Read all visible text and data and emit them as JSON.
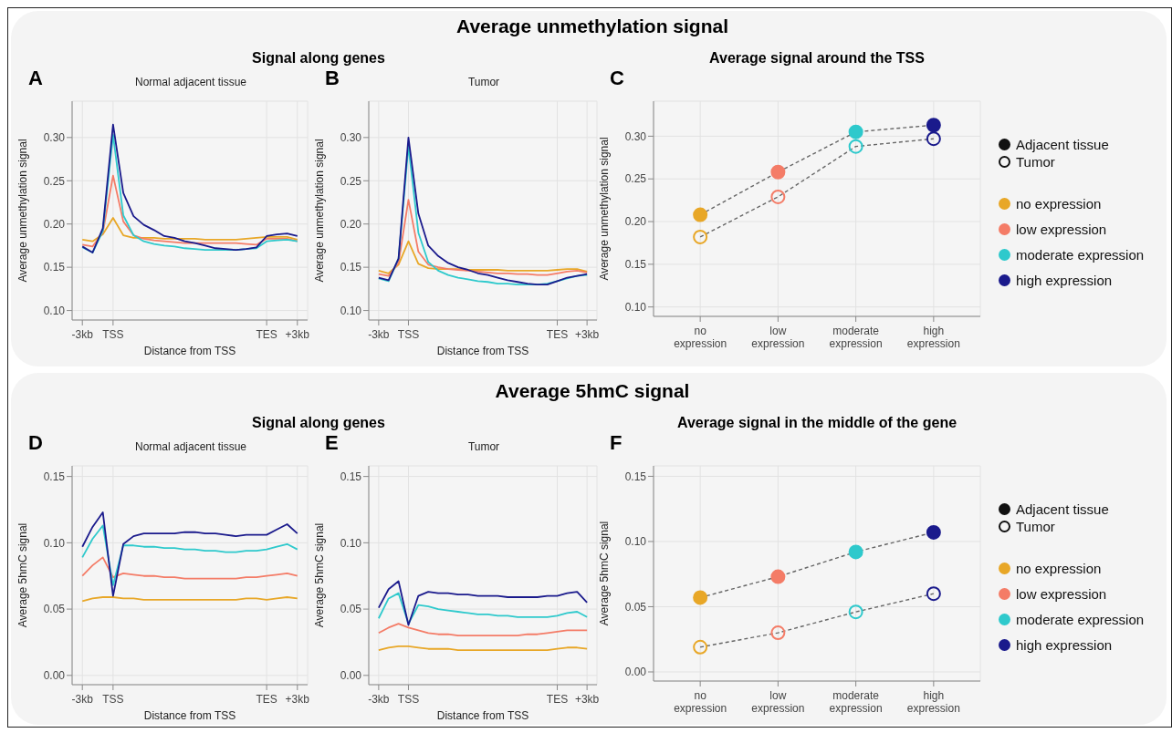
{
  "chart_data": [
    {
      "type": "line",
      "title": "Normal adjacent tissue",
      "xlabel": "Distance from TSS",
      "ylabel": "Average unmethylation signal",
      "annotations": [
        "A",
        "Average unmethylation signal",
        "Signal along genes"
      ],
      "grid": true,
      "ylim": [
        0.089,
        0.342
      ],
      "yticks": [
        {
          "value": 0.1,
          "label": "0.10"
        },
        {
          "value": 0.15,
          "label": "0.15"
        },
        {
          "value": 0.2,
          "label": "0.20"
        },
        {
          "value": 0.25,
          "label": "0.25"
        },
        {
          "value": 0.3,
          "label": "0.30"
        }
      ],
      "categories": [
        "-3kb",
        null,
        null,
        "TSS",
        null,
        null,
        null,
        null,
        null,
        null,
        null,
        null,
        null,
        null,
        null,
        null,
        null,
        null,
        "TES",
        null,
        null,
        "+3kb"
      ],
      "series": [
        {
          "color": "#e8a727",
          "values": [
            0.182,
            0.18,
            0.188,
            0.207,
            0.187,
            0.184,
            0.184,
            0.184,
            0.183,
            0.183,
            0.183,
            0.183,
            0.182,
            0.182,
            0.182,
            0.182,
            0.183,
            0.184,
            0.185,
            0.185,
            0.185,
            0.182
          ]
        },
        {
          "color": "#f47c67",
          "values": [
            0.176,
            0.174,
            0.19,
            0.256,
            0.203,
            0.187,
            0.183,
            0.181,
            0.18,
            0.179,
            0.178,
            0.178,
            0.178,
            0.178,
            0.178,
            0.178,
            0.177,
            0.176,
            0.183,
            0.183,
            0.183,
            0.18
          ]
        },
        {
          "color": "#2ec9cc",
          "values": [
            0.173,
            0.167,
            0.192,
            0.303,
            0.21,
            0.187,
            0.18,
            0.177,
            0.175,
            0.174,
            0.172,
            0.171,
            0.17,
            0.17,
            0.17,
            0.17,
            0.171,
            0.172,
            0.18,
            0.181,
            0.182,
            0.18
          ]
        },
        {
          "color": "#1a1a8c",
          "values": [
            0.174,
            0.167,
            0.195,
            0.315,
            0.236,
            0.209,
            0.199,
            0.193,
            0.186,
            0.184,
            0.18,
            0.178,
            0.175,
            0.172,
            0.171,
            0.17,
            0.171,
            0.173,
            0.186,
            0.188,
            0.189,
            0.186
          ]
        }
      ]
    },
    {
      "type": "line",
      "title": "Tumor",
      "xlabel": "Distance from TSS",
      "ylabel": "Average unmethylation signal",
      "annotations": [
        "B"
      ],
      "grid": true,
      "ylim": [
        0.089,
        0.342
      ],
      "yticks": [
        {
          "value": 0.1,
          "label": "0.10"
        },
        {
          "value": 0.15,
          "label": "0.15"
        },
        {
          "value": 0.2,
          "label": "0.20"
        },
        {
          "value": 0.25,
          "label": "0.25"
        },
        {
          "value": 0.3,
          "label": "0.30"
        }
      ],
      "categories": [
        "-3kb",
        null,
        null,
        "TSS",
        null,
        null,
        null,
        null,
        null,
        null,
        null,
        null,
        null,
        null,
        null,
        null,
        null,
        null,
        "TES",
        null,
        null,
        "+3kb"
      ],
      "series": [
        {
          "color": "#e8a727",
          "values": [
            0.146,
            0.143,
            0.153,
            0.18,
            0.154,
            0.149,
            0.148,
            0.148,
            0.148,
            0.147,
            0.147,
            0.147,
            0.147,
            0.146,
            0.146,
            0.146,
            0.146,
            0.146,
            0.147,
            0.148,
            0.148,
            0.145
          ]
        },
        {
          "color": "#f47c67",
          "values": [
            0.142,
            0.14,
            0.155,
            0.228,
            0.168,
            0.153,
            0.15,
            0.148,
            0.147,
            0.146,
            0.145,
            0.144,
            0.143,
            0.143,
            0.142,
            0.142,
            0.141,
            0.141,
            0.143,
            0.145,
            0.146,
            0.144
          ]
        },
        {
          "color": "#2ec9cc",
          "values": [
            0.137,
            0.134,
            0.16,
            0.29,
            0.19,
            0.156,
            0.146,
            0.141,
            0.138,
            0.136,
            0.134,
            0.133,
            0.131,
            0.131,
            0.13,
            0.13,
            0.13,
            0.131,
            0.134,
            0.137,
            0.14,
            0.141
          ]
        },
        {
          "color": "#1a1a8c",
          "values": [
            0.138,
            0.135,
            0.16,
            0.3,
            0.212,
            0.175,
            0.163,
            0.155,
            0.15,
            0.147,
            0.143,
            0.141,
            0.138,
            0.135,
            0.133,
            0.131,
            0.13,
            0.13,
            0.134,
            0.138,
            0.14,
            0.142
          ]
        }
      ]
    },
    {
      "type": "line",
      "title": "Average signal around the TSS",
      "ylabel": "Average unmethylation signal",
      "annotations": [
        "C"
      ],
      "grid": true,
      "legend": "right",
      "marker": "circle",
      "line_style": "dashed",
      "categories": [
        "no expression",
        "low expression",
        "moderate expression",
        "high expression"
      ],
      "ylim": [
        0.089,
        0.341
      ],
      "yticks": [
        {
          "value": 0.1,
          "label": "0.10"
        },
        {
          "value": 0.15,
          "label": "0.15"
        },
        {
          "value": 0.2,
          "label": "0.20"
        },
        {
          "value": 0.25,
          "label": "0.25"
        },
        {
          "value": 0.3,
          "label": "0.30"
        }
      ],
      "series": [
        {
          "name": "Adjacent tissue",
          "color": "#666666",
          "colors": [
            "#e8a727",
            "#f47c67",
            "#2ec9cc",
            "#1a1a8c"
          ],
          "values": [
            0.208,
            0.258,
            0.305,
            0.313
          ]
        },
        {
          "name": "Tumor",
          "color": "#666666",
          "colors": [
            "#e8a727",
            "#f47c67",
            "#2ec9cc",
            "#1a1a8c"
          ],
          "values": [
            0.182,
            0.229,
            0.288,
            0.297
          ]
        }
      ]
    },
    {
      "type": "line",
      "title": "Normal adjacent tissue",
      "xlabel": "Distance from TSS",
      "ylabel": "Average 5hmC signal",
      "annotations": [
        "D",
        "Average 5hmC signal",
        "Signal along genes"
      ],
      "grid": true,
      "ylim": [
        -0.007,
        0.158
      ],
      "yticks": [
        {
          "value": 0,
          "label": "0.00"
        },
        {
          "value": 0.05,
          "label": "0.05"
        },
        {
          "value": 0.1,
          "label": "0.10"
        },
        {
          "value": 0.15,
          "label": "0.15"
        }
      ],
      "categories": [
        "-3kb",
        null,
        null,
        "TSS",
        null,
        null,
        null,
        null,
        null,
        null,
        null,
        null,
        null,
        null,
        null,
        null,
        null,
        null,
        "TES",
        null,
        null,
        "+3kb"
      ],
      "series": [
        {
          "color": "#e8a727",
          "values": [
            0.056,
            0.058,
            0.059,
            0.059,
            0.058,
            0.058,
            0.057,
            0.057,
            0.057,
            0.057,
            0.057,
            0.057,
            0.057,
            0.057,
            0.057,
            0.057,
            0.058,
            0.058,
            0.057,
            0.058,
            0.059,
            0.058
          ]
        },
        {
          "color": "#f47c67",
          "values": [
            0.075,
            0.083,
            0.089,
            0.074,
            0.077,
            0.076,
            0.075,
            0.075,
            0.074,
            0.074,
            0.073,
            0.073,
            0.073,
            0.073,
            0.073,
            0.073,
            0.074,
            0.074,
            0.075,
            0.076,
            0.077,
            0.075
          ]
        },
        {
          "color": "#2ec9cc",
          "values": [
            0.089,
            0.103,
            0.113,
            0.068,
            0.098,
            0.098,
            0.097,
            0.097,
            0.096,
            0.096,
            0.095,
            0.095,
            0.094,
            0.094,
            0.093,
            0.093,
            0.094,
            0.094,
            0.095,
            0.097,
            0.099,
            0.095
          ]
        },
        {
          "color": "#1a1a8c",
          "values": [
            0.097,
            0.112,
            0.123,
            0.06,
            0.099,
            0.105,
            0.107,
            0.107,
            0.107,
            0.107,
            0.108,
            0.108,
            0.107,
            0.107,
            0.106,
            0.105,
            0.106,
            0.106,
            0.106,
            0.11,
            0.114,
            0.107
          ]
        }
      ]
    },
    {
      "type": "line",
      "title": "Tumor",
      "xlabel": "Distance from TSS",
      "ylabel": "Average 5hmC signal",
      "annotations": [
        "E"
      ],
      "grid": true,
      "ylim": [
        -0.007,
        0.158
      ],
      "yticks": [
        {
          "value": 0,
          "label": "0.00"
        },
        {
          "value": 0.05,
          "label": "0.05"
        },
        {
          "value": 0.1,
          "label": "0.10"
        },
        {
          "value": 0.15,
          "label": "0.15"
        }
      ],
      "categories": [
        "-3kb",
        null,
        null,
        "TSS",
        null,
        null,
        null,
        null,
        null,
        null,
        null,
        null,
        null,
        null,
        null,
        null,
        null,
        null,
        "TES",
        null,
        null,
        "+3kb"
      ],
      "series": [
        {
          "color": "#e8a727",
          "values": [
            0.019,
            0.021,
            0.022,
            0.022,
            0.021,
            0.02,
            0.02,
            0.02,
            0.019,
            0.019,
            0.019,
            0.019,
            0.019,
            0.019,
            0.019,
            0.019,
            0.019,
            0.019,
            0.02,
            0.021,
            0.021,
            0.02
          ]
        },
        {
          "color": "#f47c67",
          "values": [
            0.032,
            0.036,
            0.039,
            0.036,
            0.034,
            0.032,
            0.031,
            0.031,
            0.03,
            0.03,
            0.03,
            0.03,
            0.03,
            0.03,
            0.03,
            0.031,
            0.031,
            0.032,
            0.033,
            0.034,
            0.034,
            0.034
          ]
        },
        {
          "color": "#2ec9cc",
          "values": [
            0.043,
            0.058,
            0.062,
            0.039,
            0.053,
            0.052,
            0.05,
            0.049,
            0.048,
            0.047,
            0.046,
            0.046,
            0.045,
            0.045,
            0.044,
            0.044,
            0.044,
            0.044,
            0.045,
            0.047,
            0.048,
            0.044
          ]
        },
        {
          "color": "#1a1a8c",
          "values": [
            0.051,
            0.065,
            0.071,
            0.038,
            0.06,
            0.063,
            0.062,
            0.062,
            0.061,
            0.061,
            0.06,
            0.06,
            0.06,
            0.059,
            0.059,
            0.059,
            0.059,
            0.06,
            0.06,
            0.062,
            0.063,
            0.055
          ]
        }
      ]
    },
    {
      "type": "line",
      "title": "Average signal in the middle of the gene",
      "ylabel": "Average 5hmC signal",
      "annotations": [
        "F"
      ],
      "grid": true,
      "legend": "right",
      "marker": "circle",
      "line_style": "dashed",
      "categories": [
        "no expression",
        "low expression",
        "moderate expression",
        "high expression"
      ],
      "ylim": [
        -0.007,
        0.158
      ],
      "yticks": [
        {
          "value": 0,
          "label": "0.00"
        },
        {
          "value": 0.05,
          "label": "0.05"
        },
        {
          "value": 0.1,
          "label": "0.10"
        },
        {
          "value": 0.15,
          "label": "0.15"
        }
      ],
      "series": [
        {
          "name": "Adjacent tissue",
          "color": "#666666",
          "colors": [
            "#e8a727",
            "#f47c67",
            "#2ec9cc",
            "#1a1a8c"
          ],
          "values": [
            0.057,
            0.073,
            0.092,
            0.107
          ]
        },
        {
          "name": "Tumor",
          "color": "#666666",
          "colors": [
            "#e8a727",
            "#f47c67",
            "#2ec9cc",
            "#1a1a8c"
          ],
          "values": [
            0.019,
            0.03,
            0.046,
            0.06
          ]
        }
      ]
    }
  ]
}
